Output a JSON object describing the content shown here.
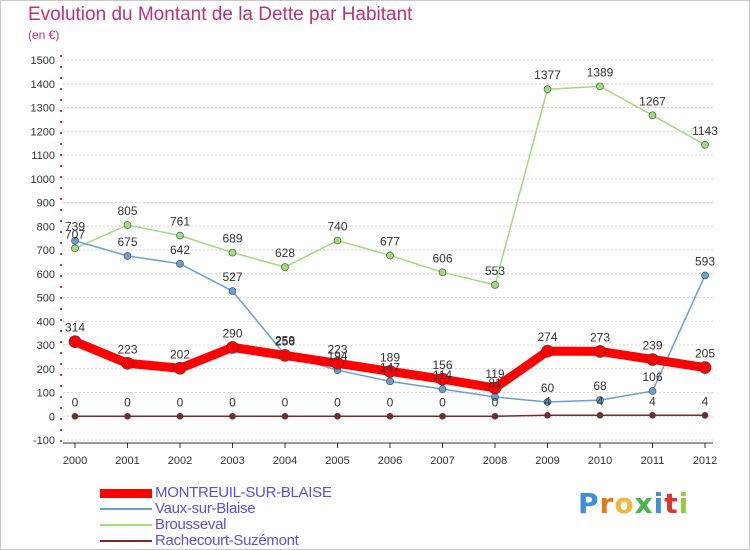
{
  "header": {
    "title": "Evolution du Montant de la Dette par Habitant",
    "unit": "(en €)"
  },
  "logo": {
    "letters": [
      "P",
      "r",
      "o",
      "x",
      "i",
      "t",
      "i"
    ]
  },
  "chart_data": {
    "type": "line",
    "title": "Evolution du Montant de la Dette par Habitant",
    "ylabel": "(en €)",
    "xlabel": "",
    "x": [
      "2000",
      "2001",
      "2002",
      "2003",
      "2004",
      "2005",
      "2006",
      "2007",
      "2008",
      "2009",
      "2010",
      "2011",
      "2012"
    ],
    "ylim": [
      -100,
      1500
    ],
    "yticks": [
      "-100",
      "0",
      "100",
      "200",
      "300",
      "400",
      "500",
      "600",
      "700",
      "800",
      "900",
      "1000",
      "1100",
      "1200",
      "1300",
      "1400",
      "1500"
    ],
    "grid": "horizontal dashed",
    "legend_position": "bottom-left",
    "series": [
      {
        "name": "MONTREUIL-SUR-BLAISE",
        "color": "#ff0000",
        "values": [
          314,
          223,
          202,
          290,
          256,
          223,
          189,
          156,
          119,
          274,
          273,
          239,
          205
        ]
      },
      {
        "name": "Vaux-sur-Blaise",
        "color": "#6b9fd0",
        "values": [
          739,
          675,
          642,
          527,
          259,
          194,
          147,
          114,
          81,
          60,
          68,
          106,
          593
        ]
      },
      {
        "name": "Brousseval",
        "color": "#9fdc7a",
        "values": [
          707,
          805,
          761,
          689,
          628,
          740,
          677,
          606,
          553,
          1377,
          1389,
          1267,
          1143
        ]
      },
      {
        "name": "Rachecourt-Suzémont",
        "color": "#7a2a2a",
        "values": [
          0,
          0,
          0,
          0,
          0,
          0,
          0,
          0,
          0,
          4,
          4,
          4,
          4
        ]
      }
    ],
    "data_labels": [
      [
        "314",
        "223",
        "202",
        "290",
        "256",
        "223",
        "189",
        "156",
        "119",
        "274",
        "273",
        "239",
        "205"
      ],
      [
        "739",
        "675",
        "642",
        "527",
        "259",
        "194",
        "147",
        "114",
        "81",
        "60",
        "68",
        "106",
        "593"
      ],
      [
        "707",
        "805",
        "761",
        "689",
        "628",
        "740",
        "677",
        "606",
        "553",
        "1377",
        "1389",
        "1267",
        "1143"
      ],
      [
        "0",
        "0",
        "0",
        "0",
        "0",
        "0",
        "0",
        "0",
        "0",
        "4",
        "4",
        "4",
        "4"
      ]
    ]
  }
}
